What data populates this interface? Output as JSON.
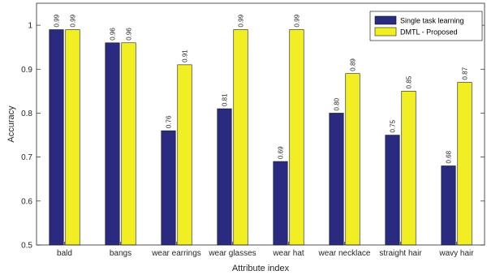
{
  "chart_data": {
    "type": "bar",
    "categories": [
      "bald",
      "bangs",
      "wear earrings",
      "wear glasses",
      "wear hat",
      "wear necklace",
      "straight hair",
      "wavy hair"
    ],
    "series": [
      {
        "name": "Single task learning",
        "color": "#2a2a80",
        "values": [
          0.99,
          0.96,
          0.76,
          0.81,
          0.69,
          0.8,
          0.75,
          0.68
        ],
        "labels": [
          "0.99",
          "0.96",
          "0.76",
          "0.81",
          "0.69",
          "0.80",
          "0.75",
          "0.68"
        ]
      },
      {
        "name": "DMTL - Proposed",
        "color": "#f2ee24",
        "values": [
          0.99,
          0.96,
          0.91,
          0.99,
          0.99,
          0.89,
          0.85,
          0.87
        ],
        "labels": [
          "0.99",
          "0.96",
          "0.91",
          "0.99",
          "0.99",
          "0.89",
          "0.85",
          "0.87"
        ]
      }
    ],
    "xlabel": "Attribute index",
    "ylabel": "Accuracy",
    "ylim": [
      0.5,
      1.05
    ],
    "yticks": [
      0.5,
      0.6,
      0.7,
      0.8,
      0.9,
      1.0
    ],
    "ytick_labels": [
      "0.5",
      "0.6",
      "0.7",
      "0.8",
      "0.9",
      "1"
    ],
    "grid": false,
    "legend_position": "top-right"
  }
}
